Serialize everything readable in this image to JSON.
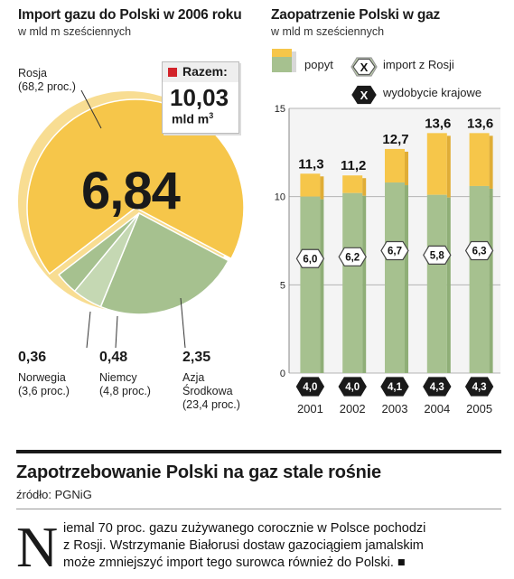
{
  "pie_section": {
    "title": "Import gazu do Polski w 2006 roku",
    "subtitle": "w mld m sześciennych",
    "center_value": "6,84",
    "razem_label": "Razem:",
    "razem_value": "10,03",
    "razem_unit": "mld m",
    "razem_unit_sup": "3",
    "labels": [
      {
        "value": "",
        "name": "Rosja",
        "pct": "(68,2 proc.)"
      },
      {
        "value": "0,36",
        "name": "Norwegia",
        "pct": "(3,6 proc.)"
      },
      {
        "value": "0,48",
        "name": "Niemcy",
        "pct": "(4,8 proc.)"
      },
      {
        "value": "2,35",
        "name": "Azja",
        "name2": "Środkowa",
        "pct": "(23,4 proc.)"
      }
    ]
  },
  "bar_section": {
    "title": "Zaopatrzenie Polski w gaz",
    "subtitle": "w mld m sześciennych",
    "legend": [
      {
        "label": "popyt"
      },
      {
        "label": "import z Rosji",
        "marker": "X"
      },
      {
        "label": "wydobycie krajowe",
        "marker": "X"
      }
    ]
  },
  "article": {
    "headline": "Zapotrzebowanie Polski na gaz stale rośnie",
    "source": "źródło: PGNiG",
    "dropcap": "N",
    "lines": [
      "iemal 70 proc. gazu zużywanego corocznie w Polsce pochodzi",
      "z Rosji. Wstrzymanie Białorusi dostaw gazociągiem jamalskim",
      "może zmniejszyć import tego surowca również do Polski. ■"
    ]
  },
  "colors": {
    "yellow": "#f6c64a",
    "yellow_light": "#f8dd92",
    "green": "#a6c18f",
    "green_light": "#c5d8b3",
    "red": "#d2232a",
    "dark": "#1a1a1a"
  },
  "chart_data": [
    {
      "type": "pie",
      "title": "Import gazu do Polski w 2006 roku",
      "unit": "w mld m sześciennych",
      "total": 10.03,
      "slices": [
        {
          "name": "Rosja",
          "value": 6.84,
          "pct": 68.2,
          "color": "#f6c64a"
        },
        {
          "name": "Azja Środkowa",
          "value": 2.35,
          "pct": 23.4,
          "color": "#a6c18f"
        },
        {
          "name": "Niemcy",
          "value": 0.48,
          "pct": 4.8,
          "color": "#c5d8b3"
        },
        {
          "name": "Norwegia",
          "value": 0.36,
          "pct": 3.6,
          "color": "#a6c18f"
        }
      ]
    },
    {
      "type": "bar",
      "title": "Zaopatrzenie Polski w gaz",
      "unit": "w mld m sześciennych",
      "categories": [
        "2001",
        "2002",
        "2003",
        "2004",
        "2005"
      ],
      "ylim": [
        0,
        15
      ],
      "yticks": [
        0,
        5,
        10,
        15
      ],
      "grid": true,
      "series": [
        {
          "name": "popyt",
          "values": [
            11.3,
            11.2,
            12.7,
            13.6,
            13.6
          ],
          "color": "#f6c64a"
        },
        {
          "name": "import z Rosji",
          "values": [
            6.0,
            6.2,
            6.7,
            5.8,
            6.3
          ],
          "color": "#a6c18f"
        },
        {
          "name": "wydobycie krajowe",
          "values": [
            4.0,
            4.0,
            4.1,
            4.3,
            4.3
          ],
          "color": "#1a1a1a"
        }
      ],
      "total_labels": [
        "11,3",
        "11,2",
        "12,7",
        "13,6",
        "13,6"
      ],
      "import_labels": [
        "6,0",
        "6,2",
        "6,7",
        "5,8",
        "6,3"
      ],
      "domestic_labels": [
        "4,0",
        "4,0",
        "4,1",
        "4,3",
        "4,3"
      ]
    }
  ]
}
